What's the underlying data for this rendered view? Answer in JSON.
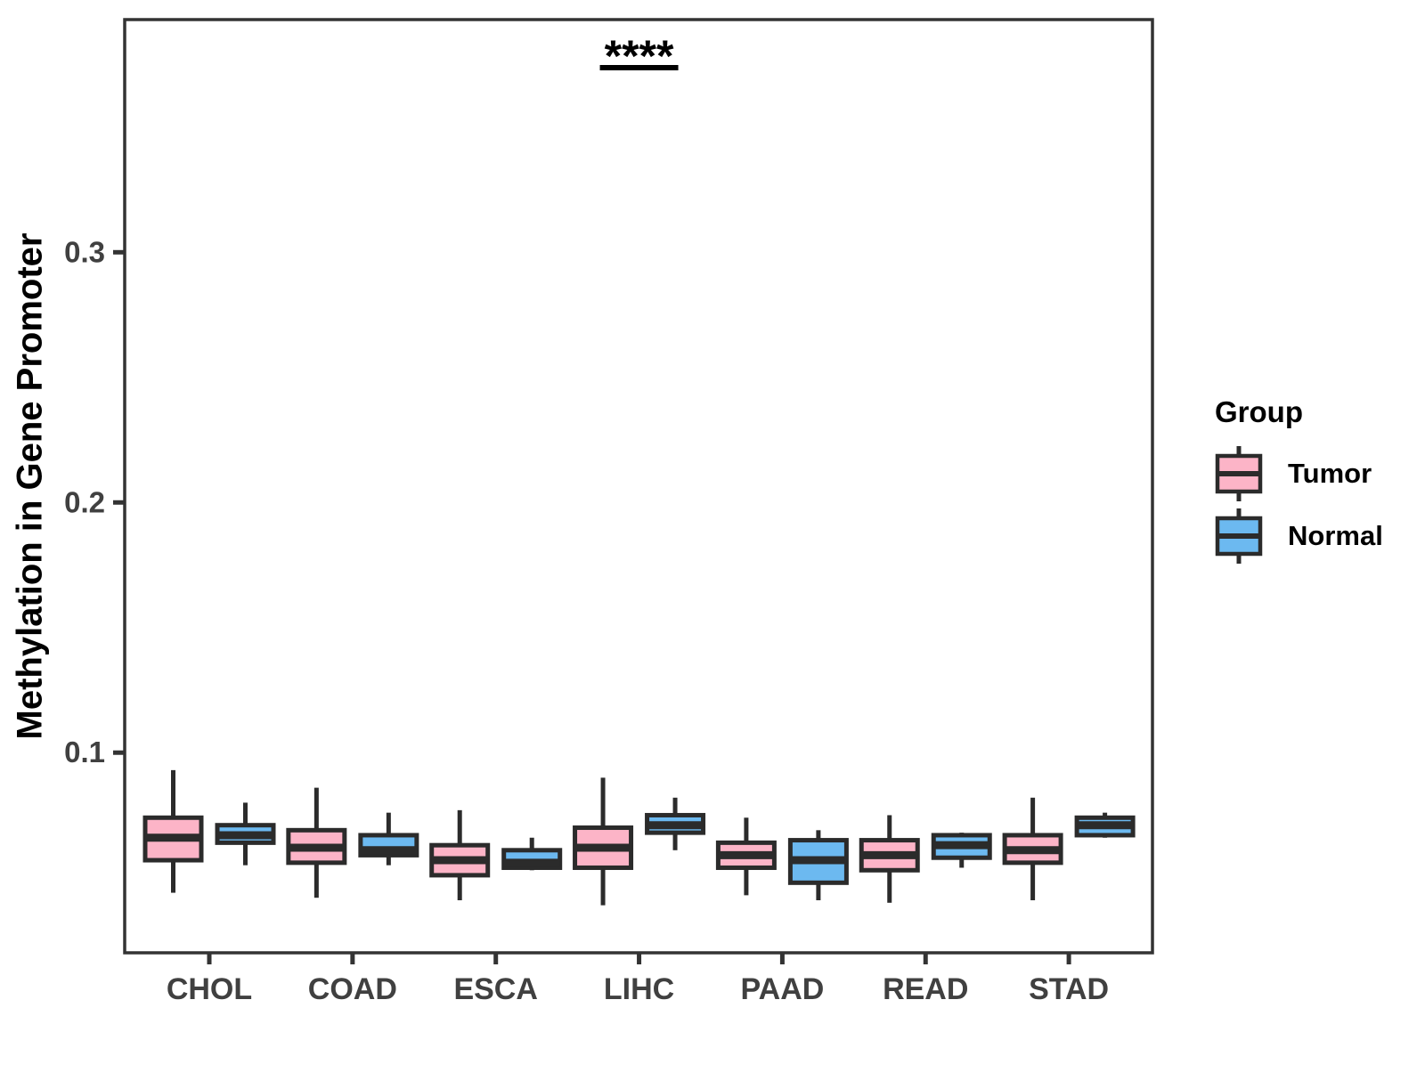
{
  "chart_data": {
    "type": "grouped_boxplot",
    "title": "",
    "xlabel": "",
    "ylabel": "Methylation in Gene Promoter",
    "categories": [
      "CHOL",
      "COAD",
      "ESCA",
      "LIHC",
      "PAAD",
      "READ",
      "STAD"
    ],
    "ylim": [
      0.02,
      0.393
    ],
    "yticks": [
      {
        "value": 0.1,
        "label": "0.1"
      },
      {
        "value": 0.2,
        "label": "0.2"
      },
      {
        "value": 0.3,
        "label": "0.3"
      }
    ],
    "grid": "off",
    "legend": {
      "title": "Group",
      "position": "right",
      "items": [
        {
          "label": "Tumor",
          "color": "#FCB4C7"
        },
        {
          "label": "Normal",
          "color": "#6CB9F0"
        }
      ]
    },
    "series": [
      {
        "name": "Tumor",
        "color": "#FCB4C7",
        "values": [
          {
            "category": "CHOL",
            "low": 0.044,
            "q1": 0.057,
            "median": 0.066,
            "q3": 0.074,
            "high": 0.093
          },
          {
            "category": "COAD",
            "low": 0.042,
            "q1": 0.056,
            "median": 0.062,
            "q3": 0.069,
            "high": 0.086
          },
          {
            "category": "ESCA",
            "low": 0.041,
            "q1": 0.051,
            "median": 0.057,
            "q3": 0.063,
            "high": 0.077
          },
          {
            "category": "LIHC",
            "low": 0.039,
            "q1": 0.054,
            "median": 0.062,
            "q3": 0.07,
            "high": 0.09
          },
          {
            "category": "PAAD",
            "low": 0.043,
            "q1": 0.054,
            "median": 0.059,
            "q3": 0.064,
            "high": 0.074
          },
          {
            "category": "READ",
            "low": 0.04,
            "q1": 0.053,
            "median": 0.059,
            "q3": 0.065,
            "high": 0.075
          },
          {
            "category": "STAD",
            "low": 0.041,
            "q1": 0.056,
            "median": 0.061,
            "q3": 0.067,
            "high": 0.082
          }
        ]
      },
      {
        "name": "Normal",
        "color": "#6CB9F0",
        "values": [
          {
            "category": "CHOL",
            "low": 0.055,
            "q1": 0.064,
            "median": 0.067,
            "q3": 0.071,
            "high": 0.08
          },
          {
            "category": "COAD",
            "low": 0.055,
            "q1": 0.059,
            "median": 0.061,
            "q3": 0.067,
            "high": 0.076
          },
          {
            "category": "ESCA",
            "low": 0.053,
            "q1": 0.054,
            "median": 0.056,
            "q3": 0.061,
            "high": 0.066
          },
          {
            "category": "LIHC",
            "low": 0.061,
            "q1": 0.068,
            "median": 0.071,
            "q3": 0.075,
            "high": 0.082
          },
          {
            "category": "PAAD",
            "low": 0.041,
            "q1": 0.048,
            "median": 0.057,
            "q3": 0.065,
            "high": 0.069
          },
          {
            "category": "READ",
            "low": 0.054,
            "q1": 0.058,
            "median": 0.063,
            "q3": 0.067,
            "high": 0.068
          },
          {
            "category": "STAD",
            "low": 0.066,
            "q1": 0.067,
            "median": 0.071,
            "q3": 0.074,
            "high": 0.076
          }
        ]
      }
    ],
    "annotations": [
      {
        "text": "****",
        "category": "LIHC",
        "type": "significance"
      }
    ],
    "style": {
      "box_border_color": "#2B2B2B",
      "axis_color": "#333333",
      "tick_label_color": "#404040",
      "annotation_color": "#000000",
      "background": "#FFFFFF"
    }
  }
}
